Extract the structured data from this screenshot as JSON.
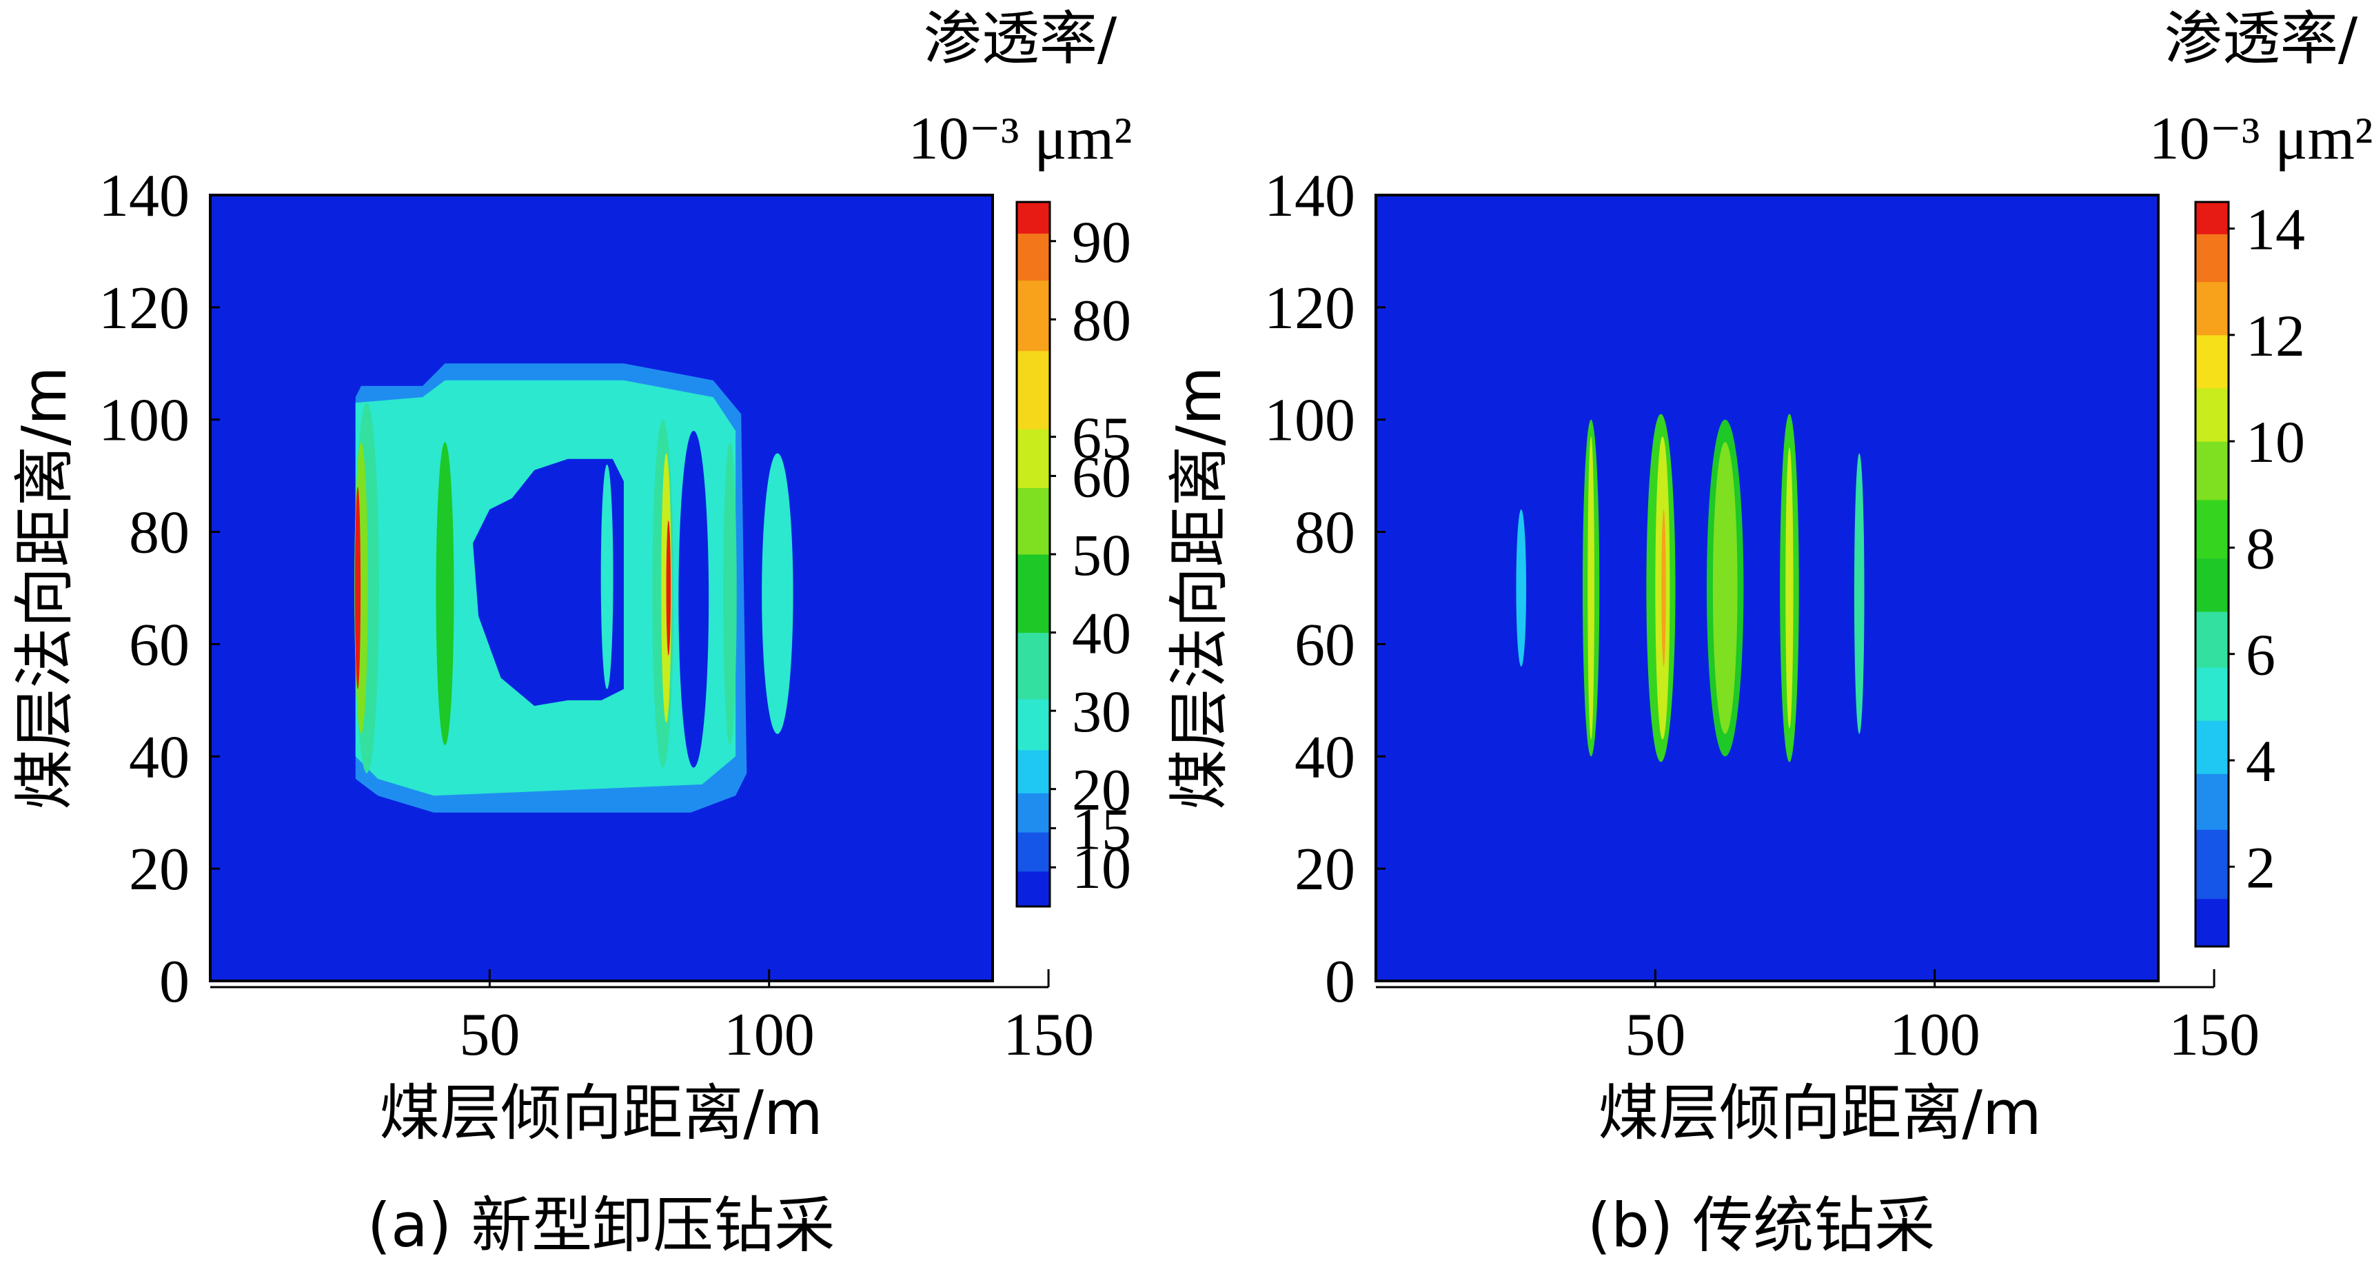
{
  "panels": [
    {
      "id": "a",
      "caption": "(a) 新型卸压钻采",
      "xlabel": "煤层倾向距离/m",
      "ylabel": "煤层法向距离/m",
      "colorbar_title_line1": "渗透率/",
      "colorbar_title_line2": "10⁻³ μm²",
      "chart_data": {
        "type": "heatmap",
        "title": "",
        "xlabel": "煤层倾向距离/m",
        "ylabel": "煤层法向距离/m",
        "xlim": [
          0,
          150
        ],
        "ylim": [
          0,
          140
        ],
        "x_ticks": [
          50,
          100,
          150
        ],
        "y_ticks": [
          0,
          20,
          40,
          60,
          80,
          100,
          120,
          140
        ],
        "x_tick_labels": [
          "50",
          "100",
          "150"
        ],
        "y_tick_labels": [
          "0",
          "20",
          "40",
          "60",
          "80",
          "100",
          "120",
          "140"
        ],
        "domain": {
          "x": [
            0,
            140
          ],
          "y": [
            0,
            140
          ]
        },
        "background_value": 5,
        "colorbar": {
          "min": 5,
          "max": 95,
          "ticks": [
            10,
            15,
            20,
            30,
            40,
            50,
            60,
            65,
            80,
            90
          ],
          "tick_labels": [
            "10",
            "15",
            "20",
            "30",
            "40",
            "50",
            "60",
            "65",
            "80",
            "90"
          ],
          "bands": [
            {
              "value": 7,
              "color": "#0a22e0"
            },
            {
              "value": 12,
              "color": "#1555e8"
            },
            {
              "value": 17,
              "color": "#1f8df0"
            },
            {
              "value": 22,
              "color": "#1fc8f2"
            },
            {
              "value": 28,
              "color": "#2be8cf"
            },
            {
              "value": 35,
              "color": "#33e0a0"
            },
            {
              "value": 45,
              "color": "#1ec826"
            },
            {
              "value": 55,
              "color": "#7ee020"
            },
            {
              "value": 62,
              "color": "#c8ec1c"
            },
            {
              "value": 70,
              "color": "#f5d81a"
            },
            {
              "value": 82,
              "color": "#f7a21a"
            },
            {
              "value": 88,
              "color": "#f4761a"
            },
            {
              "value": 94,
              "color": "#e81a14"
            }
          ]
        },
        "regions": [
          {
            "shape": "polygon",
            "value": 17,
            "points": [
              [
                26,
                104
              ],
              [
                27,
                106
              ],
              [
                38,
                106
              ],
              [
                42,
                110
              ],
              [
                74,
                110
              ],
              [
                90,
                107
              ],
              [
                95,
                101
              ],
              [
                96,
                37
              ],
              [
                94,
                33
              ],
              [
                86,
                30
              ],
              [
                40,
                30
              ],
              [
                30,
                33
              ],
              [
                26,
                36
              ]
            ]
          },
          {
            "shape": "polygon",
            "value": 26,
            "points": [
              [
                26,
                103
              ],
              [
                38,
                104
              ],
              [
                42,
                107
              ],
              [
                74,
                107
              ],
              [
                90,
                104
              ],
              [
                94,
                98
              ],
              [
                94,
                40
              ],
              [
                88,
                35
              ],
              [
                40,
                33
              ],
              [
                30,
                36
              ],
              [
                26,
                40
              ]
            ]
          },
          {
            "shape": "polygon",
            "value": 5,
            "points": [
              [
                50,
                84
              ],
              [
                54,
                86
              ],
              [
                58,
                91
              ],
              [
                64,
                93
              ],
              [
                72,
                93
              ],
              [
                74,
                89
              ],
              [
                74,
                52
              ],
              [
                70,
                50
              ],
              [
                64,
                50
              ],
              [
                58,
                49
              ],
              [
                52,
                54
              ],
              [
                48,
                65
              ],
              [
                47,
                78
              ]
            ]
          },
          {
            "shape": "ellipse",
            "value": 5,
            "cx": 86.5,
            "cy": 68,
            "rx": 2.7,
            "ry": 30
          },
          {
            "shape": "ellipse",
            "value": 26,
            "cx": 71,
            "cy": 72,
            "rx": 1.1,
            "ry": 20
          },
          {
            "shape": "ellipse",
            "value": 26,
            "cx": 101.5,
            "cy": 69,
            "rx": 2.8,
            "ry": 25
          },
          {
            "shape": "ellipse",
            "value": 35,
            "cx": 28,
            "cy": 70,
            "rx": 2.2,
            "ry": 33
          },
          {
            "shape": "ellipse",
            "value": 55,
            "cx": 27,
            "cy": 70,
            "rx": 1.2,
            "ry": 26
          },
          {
            "shape": "ellipse",
            "value": 94,
            "cx": 26.4,
            "cy": 70,
            "rx": 0.5,
            "ry": 18
          },
          {
            "shape": "ellipse",
            "value": 45,
            "cx": 42,
            "cy": 69,
            "rx": 1.6,
            "ry": 27
          },
          {
            "shape": "ellipse",
            "value": 35,
            "cx": 81,
            "cy": 69,
            "rx": 1.9,
            "ry": 31
          },
          {
            "shape": "ellipse",
            "value": 62,
            "cx": 81.6,
            "cy": 70,
            "rx": 0.9,
            "ry": 24
          },
          {
            "shape": "ellipse",
            "value": 94,
            "cx": 82,
            "cy": 70,
            "rx": 0.4,
            "ry": 12
          },
          {
            "shape": "ellipse",
            "value": 35,
            "cx": 93,
            "cy": 69,
            "rx": 1.2,
            "ry": 27
          }
        ]
      }
    },
    {
      "id": "b",
      "caption": "(b) 传统钻采",
      "xlabel": "煤层倾向距离/m",
      "ylabel": "煤层法向距离/m",
      "colorbar_title_line1": "渗透率/",
      "colorbar_title_line2": "10⁻³ μm²",
      "chart_data": {
        "type": "heatmap",
        "title": "",
        "xlabel": "煤层倾向距离/m",
        "ylabel": "煤层法向距离/m",
        "xlim": [
          0,
          150
        ],
        "ylim": [
          0,
          140
        ],
        "x_ticks": [
          50,
          100,
          150
        ],
        "y_ticks": [
          0,
          20,
          40,
          60,
          80,
          100,
          120,
          140
        ],
        "x_tick_labels": [
          "50",
          "100",
          "150"
        ],
        "y_tick_labels": [
          "0",
          "20",
          "40",
          "60",
          "80",
          "100",
          "120",
          "140"
        ],
        "domain": {
          "x": [
            0,
            140
          ],
          "y": [
            0,
            140
          ]
        },
        "background_value": 0.6,
        "colorbar": {
          "min": 0.5,
          "max": 14.5,
          "ticks": [
            2,
            4,
            6,
            8,
            10,
            12,
            14
          ],
          "tick_labels": [
            "2",
            "4",
            "6",
            "8",
            "10",
            "12",
            "14"
          ],
          "bands": [
            {
              "value": 0.6,
              "color": "#0a22e0"
            },
            {
              "value": 2.2,
              "color": "#1555e8"
            },
            {
              "value": 3.2,
              "color": "#1f8df0"
            },
            {
              "value": 4.3,
              "color": "#1fc8f2"
            },
            {
              "value": 5.2,
              "color": "#2be8cf"
            },
            {
              "value": 6.3,
              "color": "#33e0a0"
            },
            {
              "value": 7.3,
              "color": "#1ec826"
            },
            {
              "value": 8.3,
              "color": "#35d41e"
            },
            {
              "value": 9.5,
              "color": "#7ee020"
            },
            {
              "value": 10.5,
              "color": "#c8ec1c"
            },
            {
              "value": 11.5,
              "color": "#f5e01a"
            },
            {
              "value": 12.5,
              "color": "#f7a21a"
            },
            {
              "value": 13.5,
              "color": "#f4761a"
            },
            {
              "value": 14.3,
              "color": "#e81a14"
            }
          ]
        },
        "regions": [
          {
            "shape": "ellipse",
            "value": 4.3,
            "cx": 26,
            "cy": 70,
            "rx": 0.9,
            "ry": 14
          },
          {
            "shape": "ellipse",
            "value": 8.3,
            "cx": 38.5,
            "cy": 70,
            "rx": 1.5,
            "ry": 30
          },
          {
            "shape": "ellipse",
            "value": 10.5,
            "cx": 38.5,
            "cy": 70,
            "rx": 0.6,
            "ry": 27
          },
          {
            "shape": "ellipse",
            "value": 8.3,
            "cx": 51,
            "cy": 70,
            "rx": 2.6,
            "ry": 31
          },
          {
            "shape": "ellipse",
            "value": 10.5,
            "cx": 51.3,
            "cy": 70,
            "rx": 1.3,
            "ry": 27
          },
          {
            "shape": "ellipse",
            "value": 12.5,
            "cx": 51.5,
            "cy": 70,
            "rx": 0.4,
            "ry": 14
          },
          {
            "shape": "ellipse",
            "value": 7.3,
            "cx": 62.5,
            "cy": 70,
            "rx": 3.3,
            "ry": 30
          },
          {
            "shape": "ellipse",
            "value": 9.5,
            "cx": 62.5,
            "cy": 70,
            "rx": 2.2,
            "ry": 26
          },
          {
            "shape": "ellipse",
            "value": 8.3,
            "cx": 74,
            "cy": 70,
            "rx": 1.7,
            "ry": 31
          },
          {
            "shape": "ellipse",
            "value": 10.5,
            "cx": 74,
            "cy": 70,
            "rx": 0.7,
            "ry": 25
          },
          {
            "shape": "ellipse",
            "value": 6.3,
            "cx": 86.5,
            "cy": 69,
            "rx": 0.9,
            "ry": 25
          }
        ]
      }
    }
  ]
}
